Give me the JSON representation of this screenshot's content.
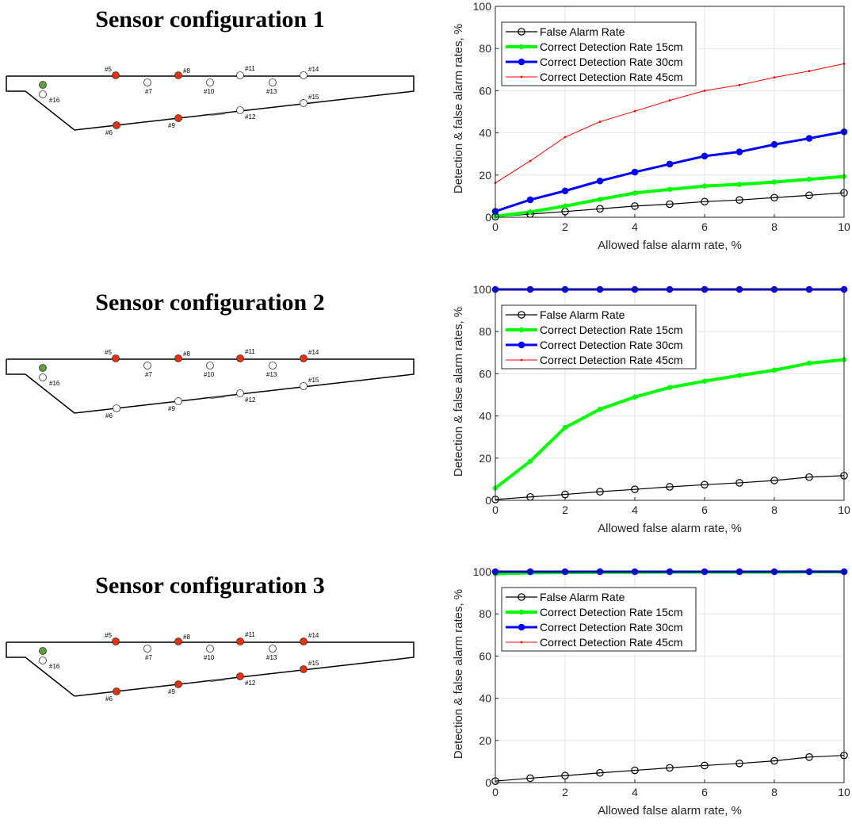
{
  "configs": [
    {
      "title": "Sensor configuration 1",
      "active_sensors": [
        "#5",
        "#6",
        "#8",
        "#9"
      ]
    },
    {
      "title": "Sensor configuration 2",
      "active_sensors": [
        "#5",
        "#8",
        "#11",
        "#14"
      ]
    },
    {
      "title": "Sensor configuration 3",
      "active_sensors": [
        "#5",
        "#6",
        "#8",
        "#9",
        "#11",
        "#12",
        "#14",
        "#15"
      ]
    }
  ],
  "sensor_labels": [
    "#5",
    "#6",
    "#7",
    "#8",
    "#9",
    "#10",
    "#11",
    "#12",
    "#13",
    "#14",
    "#15",
    "#16"
  ],
  "colors": {
    "active_sensor": "#e8300f",
    "inactive_sensor": "#ffffff",
    "reference_sensor": "#5fa13a",
    "false_alarm": "#000000",
    "detection_15cm": "#00ff00",
    "detection_30cm": "#0000ff",
    "detection_45cm": "#ff0000"
  },
  "chart_data": [
    {
      "type": "line",
      "xlabel": "Allowed false alarm rate, %",
      "ylabel": "Detection & false alarm rates, %",
      "xlim": [
        0,
        10
      ],
      "ylim": [
        0,
        100
      ],
      "xticks": [
        0,
        2,
        4,
        6,
        8,
        10
      ],
      "yticks": [
        0,
        20,
        40,
        60,
        80,
        100
      ],
      "grid": true,
      "legend_position": "top-left",
      "x": [
        0,
        1,
        2,
        3,
        4,
        5,
        6,
        7,
        8,
        9,
        10
      ],
      "series": [
        {
          "name": "False Alarm Rate",
          "values": [
            0.3,
            1.5,
            2.7,
            4.0,
            5.3,
            6.2,
            7.4,
            8.2,
            9.3,
            10.4,
            11.6
          ]
        },
        {
          "name": "Correct Detection Rate 15cm",
          "values": [
            0.5,
            2.5,
            5.3,
            8.5,
            11.5,
            13.2,
            14.8,
            15.6,
            16.7,
            18.0,
            19.3
          ]
        },
        {
          "name": "Correct Detection Rate 30cm",
          "values": [
            2.8,
            8.3,
            12.5,
            17.2,
            21.4,
            25.2,
            29.0,
            31.0,
            34.5,
            37.4,
            40.5
          ]
        },
        {
          "name": "Correct Detection Rate 45cm",
          "values": [
            16.3,
            26.7,
            38.0,
            45.3,
            50.3,
            55.4,
            60.0,
            62.7,
            66.3,
            69.3,
            72.8
          ]
        }
      ]
    },
    {
      "type": "line",
      "xlabel": "Allowed false alarm rate, %",
      "ylabel": "Detection & false alarm rates, %",
      "xlim": [
        0,
        10
      ],
      "ylim": [
        0,
        100
      ],
      "xticks": [
        0,
        2,
        4,
        6,
        8,
        10
      ],
      "yticks": [
        0,
        20,
        40,
        60,
        80,
        100
      ],
      "grid": true,
      "legend_position": "top-left",
      "x": [
        0,
        1,
        2,
        3,
        4,
        5,
        6,
        7,
        8,
        9,
        10
      ],
      "series": [
        {
          "name": "False Alarm Rate",
          "values": [
            0.4,
            1.6,
            2.8,
            4.1,
            5.2,
            6.4,
            7.4,
            8.3,
            9.4,
            11.0,
            11.7
          ]
        },
        {
          "name": "Correct Detection Rate 15cm",
          "values": [
            5.8,
            18.5,
            34.5,
            43.2,
            49.0,
            53.5,
            56.5,
            59.2,
            61.7,
            65.0,
            66.7
          ]
        },
        {
          "name": "Correct Detection Rate 30cm",
          "values": [
            100,
            100,
            100,
            100,
            100,
            100,
            100,
            100,
            100,
            100,
            100
          ]
        },
        {
          "name": "Correct Detection Rate 45cm",
          "values": [
            100,
            100,
            100,
            100,
            100,
            100,
            100,
            100,
            100,
            100,
            100
          ]
        }
      ]
    },
    {
      "type": "line",
      "xlabel": "Allowed false alarm rate, %",
      "ylabel": "Detection & false alarm rates, %",
      "xlim": [
        0,
        10
      ],
      "ylim": [
        0,
        100
      ],
      "xticks": [
        0,
        2,
        4,
        6,
        8,
        10
      ],
      "yticks": [
        0,
        20,
        40,
        60,
        80,
        100
      ],
      "grid": true,
      "legend_position": "top-left",
      "x": [
        0,
        1,
        2,
        3,
        4,
        5,
        6,
        7,
        8,
        9,
        10
      ],
      "series": [
        {
          "name": "False Alarm Rate",
          "values": [
            0.7,
            2.1,
            3.3,
            4.6,
            5.8,
            7.0,
            8.1,
            9.1,
            10.3,
            12.1,
            12.9
          ]
        },
        {
          "name": "Correct Detection Rate 15cm",
          "values": [
            99.0,
            99.5,
            99.6,
            99.7,
            99.7,
            99.8,
            99.8,
            99.8,
            99.8,
            99.9,
            99.9
          ]
        },
        {
          "name": "Correct Detection Rate 30cm",
          "values": [
            100,
            100,
            100,
            100,
            100,
            100,
            100,
            100,
            100,
            100,
            100
          ]
        },
        {
          "name": "Correct Detection Rate 45cm",
          "values": [
            100,
            100,
            100,
            100,
            100,
            100,
            100,
            100,
            100,
            100,
            100
          ]
        }
      ]
    }
  ]
}
